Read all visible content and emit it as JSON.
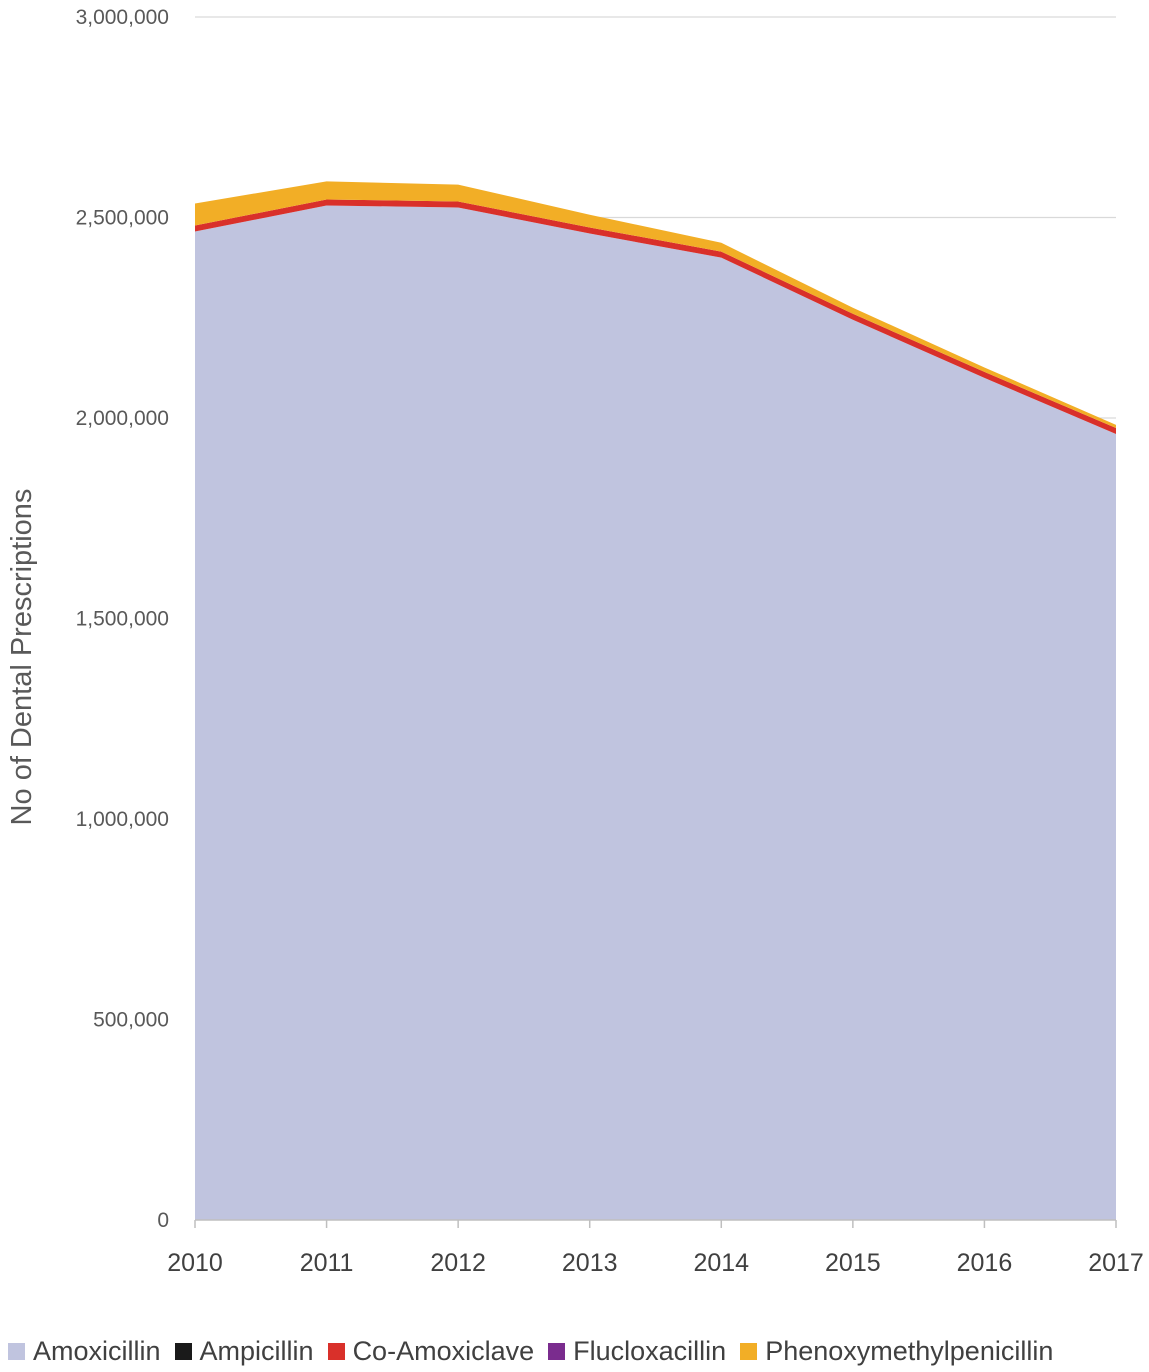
{
  "chart_data": {
    "type": "area",
    "stacked": true,
    "title": "",
    "xlabel": "",
    "ylabel": "No of Dental Prescriptions",
    "ylim": [
      0,
      3000000
    ],
    "y_ticks": [
      "0",
      "500,000",
      "1,000,000",
      "1,500,000",
      "2,000,000",
      "2,500,000",
      "3,000,000"
    ],
    "y_tick_values": [
      0,
      500000,
      1000000,
      1500000,
      2000000,
      2500000,
      3000000
    ],
    "categories": [
      "2010",
      "2011",
      "2012",
      "2013",
      "2014",
      "2015",
      "2016",
      "2017"
    ],
    "grid": true,
    "legend_position": "bottom",
    "series": [
      {
        "name": "Amoxicillin",
        "color": "#c0c4df",
        "values": [
          2465000,
          2530000,
          2525000,
          2460000,
          2400000,
          2245000,
          2100000,
          1960000
        ]
      },
      {
        "name": "Ampicillin",
        "color": "#1a1a1a",
        "values": [
          0,
          0,
          0,
          0,
          0,
          0,
          0,
          0
        ]
      },
      {
        "name": "Co-Amoxiclave",
        "color": "#d9302a",
        "values": [
          15000,
          15000,
          15000,
          15000,
          15000,
          15000,
          15000,
          15000
        ]
      },
      {
        "name": "Flucloxacillin",
        "color": "#7a2c8e",
        "values": [
          0,
          0,
          0,
          0,
          0,
          0,
          0,
          0
        ]
      },
      {
        "name": "Phenoxymethylpenicillin",
        "color": "#f2ae26",
        "values": [
          55000,
          45000,
          42000,
          32000,
          22000,
          15000,
          11000,
          8000
        ]
      }
    ]
  }
}
